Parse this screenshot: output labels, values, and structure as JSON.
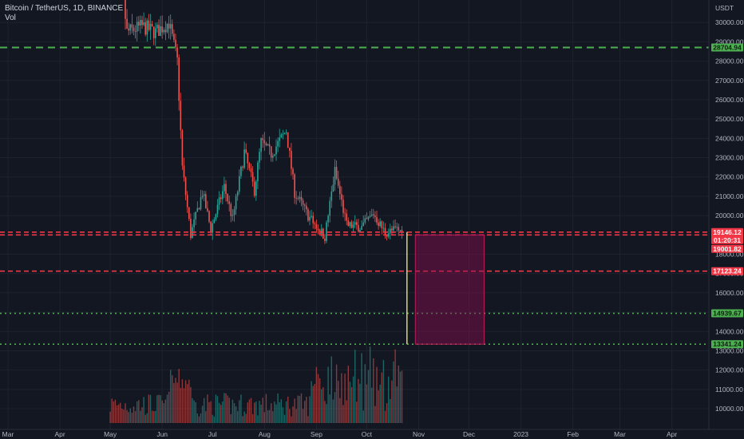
{
  "legend": {
    "symbol_line": "Bitcoin / TetherUS, 1D, BINANCE",
    "volume_label": "Vol"
  },
  "chart_data": {
    "type": "candlestick",
    "title": "Bitcoin / TetherUS, 1D, BINANCE",
    "currency": "USDT",
    "ylim": [
      9500,
      31000
    ],
    "y_ticks": [
      10000,
      11000,
      12000,
      13000,
      14000,
      15000,
      16000,
      17000,
      18000,
      19000,
      20000,
      21000,
      22000,
      23000,
      24000,
      25000,
      26000,
      27000,
      28000,
      29000,
      30000
    ],
    "x_ticks": [
      "Mar",
      "Apr",
      "May",
      "Jun",
      "Jul",
      "Aug",
      "Sep",
      "Oct",
      "Nov",
      "Dec",
      "2023",
      "Feb",
      "Mar",
      "Apr"
    ],
    "price_path": [
      [
        "2022-05-01",
        38500
      ],
      [
        "2022-05-09",
        31000
      ],
      [
        "2022-05-11",
        29500
      ],
      [
        "2022-05-20",
        29800
      ],
      [
        "2022-05-28",
        29500
      ],
      [
        "2022-06-05",
        30000
      ],
      [
        "2022-06-10",
        28000
      ],
      [
        "2022-06-13",
        22500
      ],
      [
        "2022-06-18",
        19000
      ],
      [
        "2022-06-25",
        21200
      ],
      [
        "2022-06-30",
        19300
      ],
      [
        "2022-07-08",
        21500
      ],
      [
        "2022-07-13",
        19800
      ],
      [
        "2022-07-20",
        23300
      ],
      [
        "2022-07-26",
        21300
      ],
      [
        "2022-07-30",
        23800
      ],
      [
        "2022-08-05",
        23200
      ],
      [
        "2022-08-14",
        24400
      ],
      [
        "2022-08-19",
        21200
      ],
      [
        "2022-08-27",
        20000
      ],
      [
        "2022-09-06",
        18900
      ],
      [
        "2022-09-12",
        22300
      ],
      [
        "2022-09-19",
        19500
      ],
      [
        "2022-09-28",
        19400
      ],
      [
        "2022-10-05",
        20100
      ],
      [
        "2022-10-12",
        19100
      ],
      [
        "2022-10-19",
        19300
      ],
      [
        "2022-10-22",
        19146.12
      ]
    ],
    "horizontal_levels": [
      {
        "value": 28704.94,
        "label": "28704.94",
        "color": "#4caf50",
        "style": "dashed"
      },
      {
        "value": 19146.12,
        "label": "19146.12",
        "color": "#f23645",
        "style": "dashed",
        "countdown": "01:20:31"
      },
      {
        "value": 19001.82,
        "label": "19001.82",
        "color": "#f23645",
        "style": "dashed"
      },
      {
        "value": 17123.24,
        "label": "17123.24",
        "color": "#f23645",
        "style": "dashed"
      },
      {
        "value": 14939.67,
        "label": "14939.67",
        "color": "#4caf50",
        "style": "dotted"
      },
      {
        "value": 13341.24,
        "label": "13341.24",
        "color": "#4caf50",
        "style": "dotted"
      }
    ],
    "projection_box": {
      "start": "2022-10-30",
      "end": "2022-12-10",
      "top": 19001.82,
      "bottom": 13341.24,
      "color": "#880e4f"
    },
    "projection_line": {
      "date": "2022-10-25",
      "from": 19146.12,
      "to": 13341.24,
      "color": "#fff176"
    },
    "colors": {
      "up": "#26a69a",
      "down": "#ef5350",
      "background": "#131722",
      "grid": "#1e222d"
    }
  }
}
